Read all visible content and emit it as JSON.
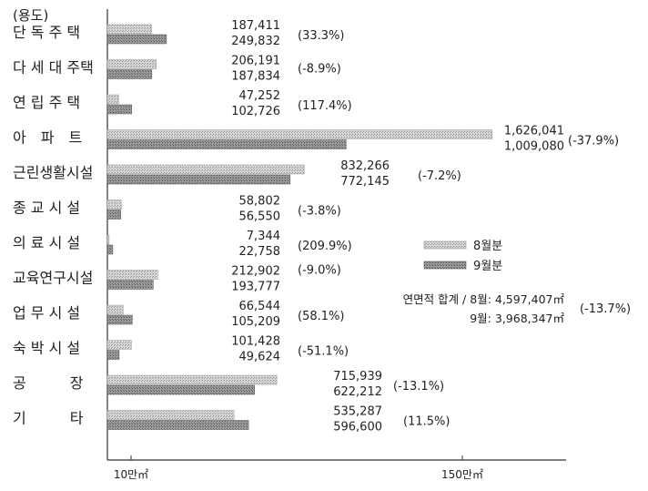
{
  "chart_data": {
    "type": "bar",
    "orientation": "horizontal",
    "y_axis_caption": "(용도)",
    "categories": [
      "단 독 주 택",
      "다 세 대 주택",
      "연 립 주 택",
      "아　파　트",
      "근린생활시설",
      "종 교 시 설",
      "의 료 시 설",
      "교육연구시설",
      "업 무 시 설",
      "숙 박 시 설",
      "공　　　장",
      "기　　　타"
    ],
    "series": [
      {
        "name": "8월분",
        "values": [
          187411,
          206191,
          47252,
          1626041,
          832266,
          58802,
          7344,
          212902,
          66544,
          101428,
          715939,
          535287
        ],
        "color": "#c8c8c8"
      },
      {
        "name": "9월분",
        "values": [
          249832,
          187834,
          102726,
          1009080,
          772145,
          56550,
          22758,
          193777,
          105209,
          49624,
          622212,
          596600
        ],
        "color": "#8a8a8a"
      }
    ],
    "value_labels": {
      "aug": [
        "187,411",
        "206,191",
        "47,252",
        "1,626,041",
        "832,266",
        "58,802",
        "7,344",
        "212,902",
        "66,544",
        "101,428",
        "715,939",
        "535,287"
      ],
      "sep": [
        "249,832",
        "187,834",
        "102,726",
        "1,009,080",
        "772,145",
        "56,550",
        "22,758",
        "193,777",
        "105,209",
        "49,624",
        "622,212",
        "596,600"
      ]
    },
    "pct_change": [
      "(33.3%)",
      "(-8.9%)",
      "(117.4%)",
      "(-37.9%)",
      "(-7.2%)",
      "(-3.8%)",
      "(209.9%)",
      "(-9.0%)",
      "(58.1%)",
      "(-51.1%)",
      "(-13.1%)",
      "(11.5%)"
    ],
    "x_ticks": [
      {
        "value": 100000,
        "label": "10만㎡"
      },
      {
        "value": 1500000,
        "label": "150만㎡"
      }
    ],
    "x_range": [
      0,
      1900000
    ],
    "legend": {
      "position": "right",
      "items": [
        "8월분",
        "9월분"
      ]
    },
    "total_note": {
      "line1": "연면적 합계 / 8월: 4,597,407㎡",
      "line2": "9월: 3,968,347㎡",
      "change": "(-13.7%)"
    },
    "grid": false
  }
}
